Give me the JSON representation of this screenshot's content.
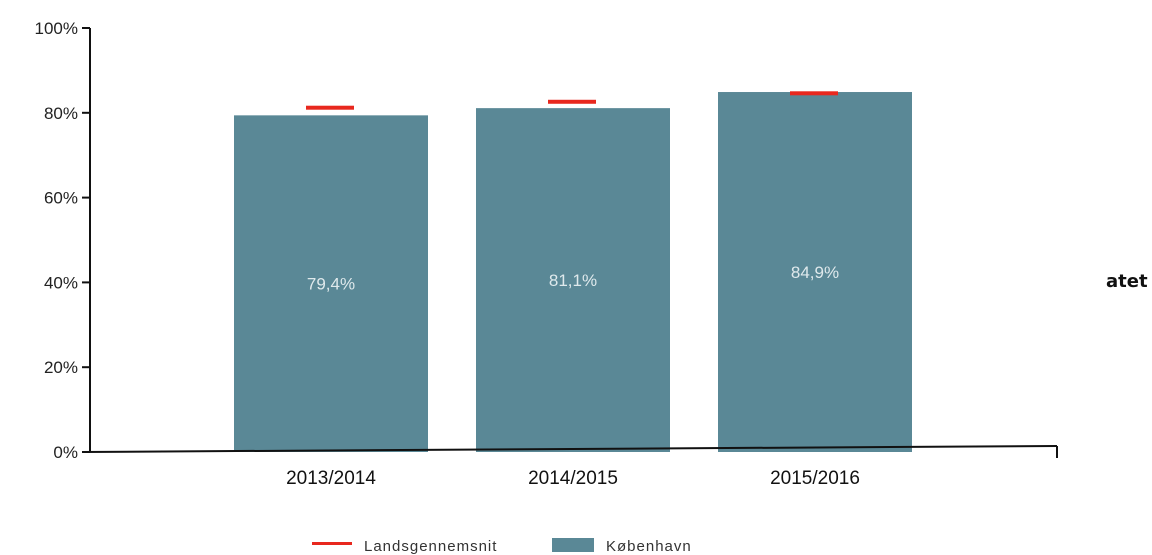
{
  "chart_data": {
    "type": "bar",
    "categories": [
      "2013/2014",
      "2014/2015",
      "2015/2016"
    ],
    "series": [
      {
        "name": "København",
        "kind": "bar",
        "values": [
          79.4,
          81.1,
          84.9
        ],
        "data_labels": [
          "79,4%",
          "81,1%",
          "84,9%"
        ]
      },
      {
        "name": "Landsgennemsnit",
        "kind": "marker",
        "values": [
          81.2,
          82.6,
          84.6
        ]
      }
    ],
    "y_ticks": [
      "0%",
      "20%",
      "40%",
      "60%",
      "80%",
      "100%"
    ],
    "ylim": [
      0,
      100
    ],
    "grid": false,
    "legend_position": "bottom-center",
    "legend": [
      "Landsgennemsnit",
      "København"
    ],
    "colors": {
      "bar": "#5a8896",
      "marker": "#e8281e",
      "axis": "#111111"
    }
  },
  "side_text": "atet"
}
